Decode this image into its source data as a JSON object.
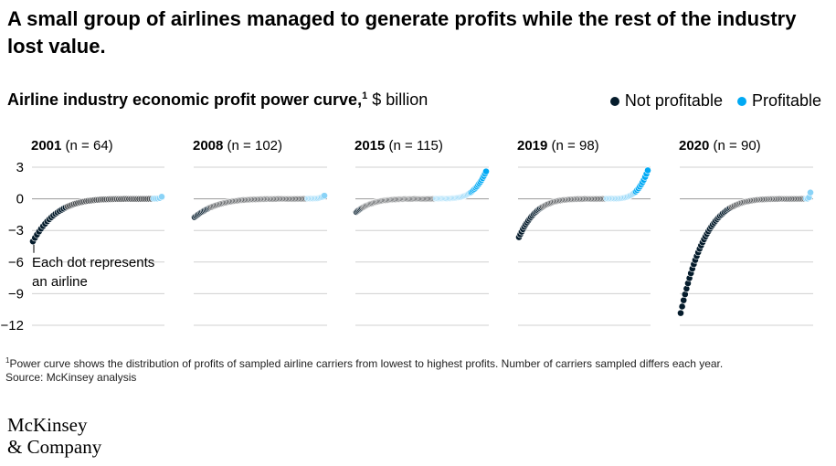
{
  "headline": "A small group of airlines managed to generate profits while the rest of the industry lost value.",
  "subtitle": {
    "main": "Airline industry economic profit power curve,",
    "superscript": "1",
    "unit": "$ billion"
  },
  "legend": [
    {
      "label": "Not profitable",
      "color": "#051c2c"
    },
    {
      "label": "Profitable",
      "color": "#00a9f4"
    }
  ],
  "colors": {
    "not_profitable": "#051c2c",
    "not_profitable_line": "#4a4d50",
    "profitable": "#00a9f4",
    "profitable_light": "#8ad3f7",
    "gridline": "#d0d0d0",
    "zero_line": "#9a9a9a"
  },
  "annotation": "Each dot represents an airline",
  "chart_data": {
    "type": "scatter",
    "title": "Airline industry economic profit power curve",
    "ylabel": "$ billion",
    "ylim": [
      -12,
      3
    ],
    "yticks": [
      3,
      0,
      -3,
      -6,
      -9,
      -12
    ],
    "panels": [
      {
        "year": "2001",
        "n_label": "(n = 64)",
        "n": 64,
        "profitable": 5,
        "min": -4.0,
        "max": 0.2
      },
      {
        "year": "2008",
        "n_label": "(n = 102)",
        "n": 102,
        "profitable": 14,
        "min": -1.7,
        "max": 0.3
      },
      {
        "year": "2015",
        "n_label": "(n = 115)",
        "n": 115,
        "profitable": 45,
        "min": -1.2,
        "max": 2.6
      },
      {
        "year": "2019",
        "n_label": "(n = 98)",
        "n": 98,
        "profitable": 32,
        "min": -3.6,
        "max": 2.7
      },
      {
        "year": "2020",
        "n_label": "(n = 90)",
        "n": 90,
        "profitable": 4,
        "min": -10.8,
        "max": 0.6
      }
    ]
  },
  "footnote": "Power curve shows the distribution of profits of sampled airline carriers from lowest to highest profits. Number of carriers sampled differs each year.",
  "footnote_marker": "1",
  "source": "Source: McKinsey analysis",
  "logo": {
    "line1": "McKinsey",
    "line2": "& Company"
  }
}
